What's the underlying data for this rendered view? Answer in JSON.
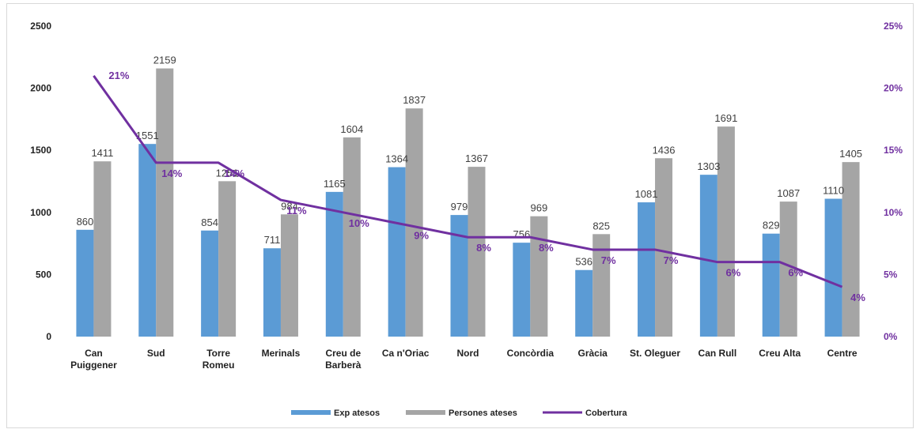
{
  "chart_data": {
    "type": "bar",
    "title": "",
    "categories": [
      [
        "Can",
        "Puiggener"
      ],
      [
        "Sud"
      ],
      [
        "Torre",
        "Romeu"
      ],
      [
        "Merinals"
      ],
      [
        "Creu de",
        "Barberà"
      ],
      [
        "Ca n'Oriac"
      ],
      [
        "Nord"
      ],
      [
        "Concòrdia"
      ],
      [
        "Gràcia"
      ],
      [
        "St. Oleguer"
      ],
      [
        "Can Rull"
      ],
      [
        "Creu Alta"
      ],
      [
        "Centre"
      ]
    ],
    "series": [
      {
        "name": "Exp atesos",
        "type": "bar",
        "axis": "left",
        "color": "#5b9bd5",
        "values": [
          860,
          1551,
          854,
          711,
          1165,
          1364,
          979,
          756,
          536,
          1081,
          1303,
          829,
          1110
        ]
      },
      {
        "name": "Persones ateses",
        "type": "bar",
        "axis": "left",
        "color": "#a5a5a5",
        "values": [
          1411,
          2159,
          1251,
          984,
          1604,
          1837,
          1367,
          969,
          825,
          1436,
          1691,
          1087,
          1405
        ]
      },
      {
        "name": "Cobertura",
        "type": "line",
        "axis": "right",
        "color": "#7030a0",
        "values": [
          21,
          14,
          14,
          11,
          10,
          9,
          8,
          8,
          7,
          7,
          6,
          6,
          4
        ]
      }
    ],
    "y_left": {
      "min": 0,
      "max": 2500,
      "ticks": [
        "0",
        "500",
        "1000",
        "1500",
        "2000",
        "2500"
      ]
    },
    "y_right": {
      "min": 0,
      "max": 25,
      "unit": "%",
      "ticks": [
        "0%",
        "5%",
        "10%",
        "15%",
        "20%",
        "25%"
      ]
    },
    "grid": false,
    "legend": "bottom"
  }
}
